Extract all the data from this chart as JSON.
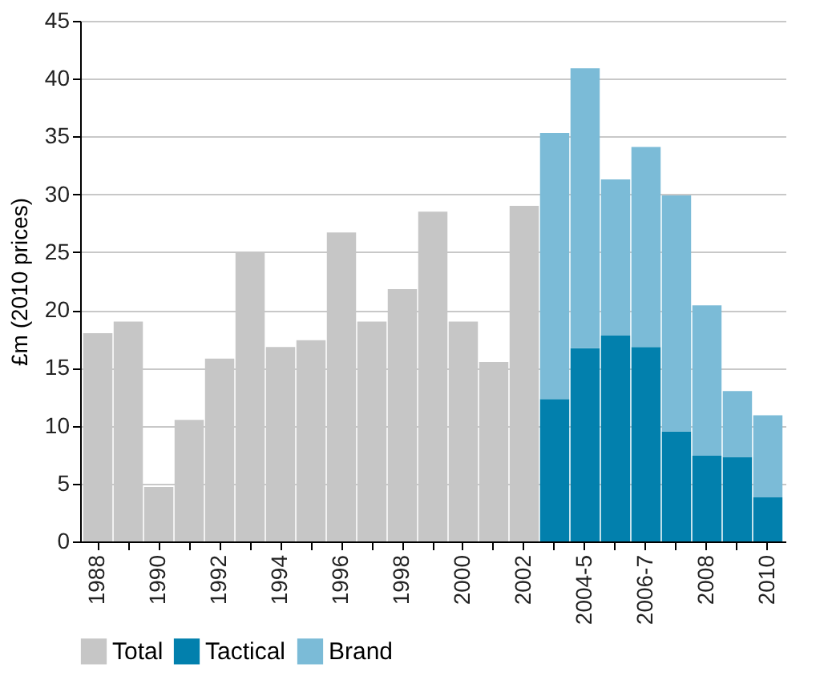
{
  "chart_data": {
    "type": "bar",
    "stacked": true,
    "ylabel": "£m (2010 prices)",
    "categories": [
      "1988",
      null,
      "1990",
      null,
      "1992",
      null,
      "1994",
      null,
      "1996",
      null,
      "1998",
      null,
      "2000",
      null,
      "2002",
      null,
      "2004-5",
      null,
      "2006-7",
      null,
      "2008",
      null,
      "2010"
    ],
    "series": [
      {
        "name": "Total",
        "color": "#c6c6c6",
        "values": [
          18.0,
          19.0,
          4.7,
          10.5,
          15.8,
          25.0,
          16.8,
          17.4,
          26.7,
          19.0,
          21.8,
          28.5,
          19.0,
          15.5,
          29.0,
          null,
          null,
          null,
          null,
          null,
          null,
          null,
          null
        ]
      },
      {
        "name": "Tactical",
        "color": "#0280ad",
        "values": [
          null,
          null,
          null,
          null,
          null,
          null,
          null,
          null,
          null,
          null,
          null,
          null,
          null,
          null,
          null,
          12.3,
          16.7,
          17.8,
          16.8,
          9.5,
          7.4,
          7.3,
          3.8
        ]
      },
      {
        "name": "Brand",
        "color": "#7bbbd7",
        "values": [
          null,
          null,
          null,
          null,
          null,
          null,
          null,
          null,
          null,
          null,
          null,
          null,
          null,
          null,
          null,
          23.0,
          24.2,
          13.5,
          17.3,
          20.4,
          13.0,
          5.7,
          7.1
        ]
      }
    ],
    "ylim": [
      0,
      45
    ],
    "yticks": [
      0,
      5,
      10,
      15,
      20,
      25,
      30,
      35,
      40,
      45
    ],
    "grid": "y",
    "legend": "bottom left"
  }
}
